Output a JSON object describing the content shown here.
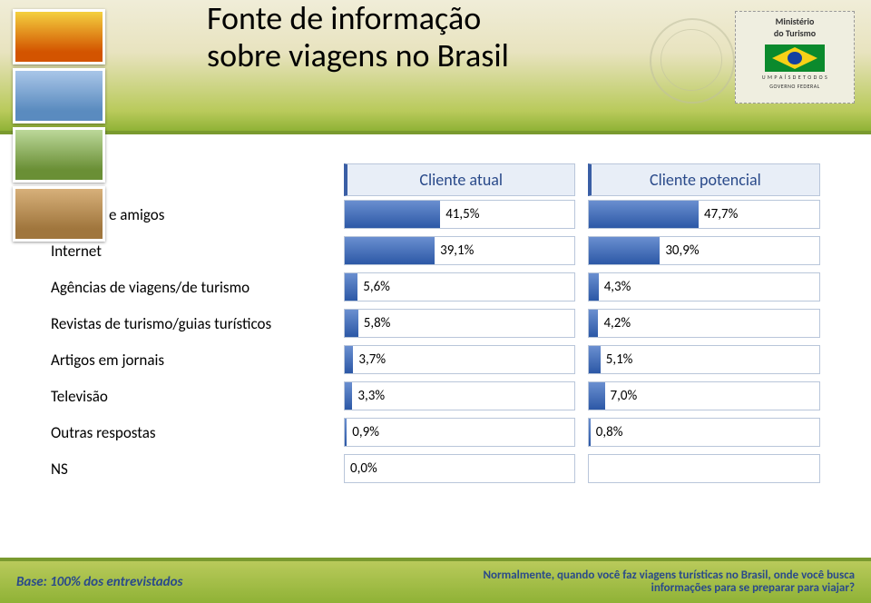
{
  "title": "Fonte de informação\nsobre viagens no Brasil",
  "ministry": "Ministério\ndo Turismo",
  "gov_line1": "U M  P A Í S  D E  T O D O S",
  "gov_line2": "GOVERNO FEDERAL",
  "columns": {
    "cat": "",
    "c1": "Cliente atual",
    "c2": "Cliente potencial"
  },
  "chart": {
    "type": "bar",
    "xlim": [
      0,
      100
    ],
    "bar_color_gradient": [
      "#6a8fd0",
      "#2c58a6"
    ],
    "cell_border_color": "#b9c6da",
    "cell_background": "#ffffff",
    "header_background": "#e8eef7",
    "header_accent": "#3a5ea5",
    "header_text_color": "#2a4a8a",
    "label_fontsize": 15,
    "category_fontsize": 17,
    "header_fontsize": 18,
    "rows": [
      {
        "cat": "Parentes e amigos",
        "v1": 41.5,
        "l1": "41,5%",
        "v2": 47.7,
        "l2": "47,7%"
      },
      {
        "cat": "Internet",
        "v1": 39.1,
        "l1": "39,1%",
        "v2": 30.9,
        "l2": "30,9%"
      },
      {
        "cat": "Agências de viagens/de turismo",
        "v1": 5.6,
        "l1": "5,6%",
        "v2": 4.3,
        "l2": "4,3%"
      },
      {
        "cat": "Revistas de turismo/guias turísticos",
        "v1": 5.8,
        "l1": "5,8%",
        "v2": 4.2,
        "l2": "4,2%"
      },
      {
        "cat": "Artigos em jornais",
        "v1": 3.7,
        "l1": "3,7%",
        "v2": 5.1,
        "l2": "5,1%"
      },
      {
        "cat": "Televisão",
        "v1": 3.3,
        "l1": "3,3%",
        "v2": 7.0,
        "l2": "7,0%"
      },
      {
        "cat": "Outras respostas",
        "v1": 0.9,
        "l1": "0,9%",
        "v2": 0.8,
        "l2": "0,8%"
      },
      {
        "cat": "NS",
        "v1": 0.0,
        "l1": "0,0%",
        "v2": null,
        "l2": ""
      }
    ]
  },
  "footer": {
    "base": "Base: 100% dos entrevistados",
    "question": "Normalmente, quando você faz viagens turísticas no Brasil, onde você busca\ninformações para se preparar para viajar?"
  },
  "colors": {
    "header_grad_top": "#f0edd8",
    "header_grad_mid": "#e8e3bf",
    "header_grad_low": "#b9ca5b",
    "header_grad_bot": "#8fb236",
    "header_border": "#7a9a2f",
    "footer_text": "#2a4a8a"
  }
}
